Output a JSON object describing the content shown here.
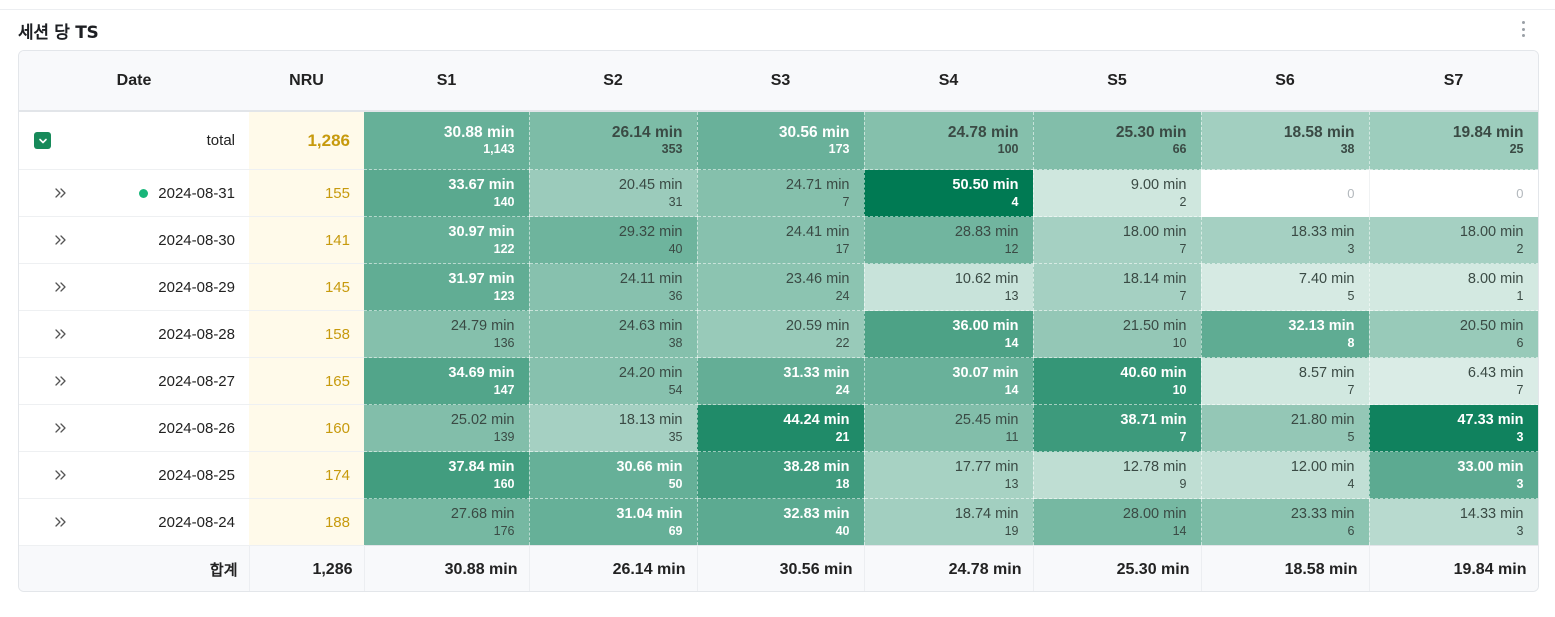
{
  "widget": {
    "title": "세션 당 TS"
  },
  "table": {
    "columns": [
      "Date",
      "NRU",
      "S1",
      "S2",
      "S3",
      "S4",
      "S5",
      "S6",
      "S7"
    ],
    "total_row": {
      "label": "total",
      "nru": "1,286",
      "cells": [
        {
          "time": "30.88 min",
          "count": "1,143",
          "level": 0.61
        },
        {
          "time": "26.14 min",
          "count": "353",
          "level": 0.52
        },
        {
          "time": "30.56 min",
          "count": "173",
          "level": 0.6
        },
        {
          "time": "24.78 min",
          "count": "100",
          "level": 0.49
        },
        {
          "time": "25.30 min",
          "count": "66",
          "level": 0.5
        },
        {
          "time": "18.58 min",
          "count": "38",
          "level": 0.37
        },
        {
          "time": "19.84 min",
          "count": "25",
          "level": 0.39
        }
      ]
    },
    "rows": [
      {
        "date": "2024-08-31",
        "active": true,
        "nru": "155",
        "cells": [
          {
            "time": "33.67 min",
            "count": "140",
            "level": 0.66
          },
          {
            "time": "20.45 min",
            "count": "31",
            "level": 0.4
          },
          {
            "time": "24.71 min",
            "count": "7",
            "level": 0.49
          },
          {
            "time": "50.50 min",
            "count": "4",
            "level": 1.0
          },
          {
            "time": "9.00 min",
            "count": "2",
            "level": 0.18
          },
          {
            "time": "",
            "count": "0",
            "level": 0
          },
          {
            "time": "",
            "count": "0",
            "level": 0
          }
        ]
      },
      {
        "date": "2024-08-30",
        "active": false,
        "nru": "141",
        "cells": [
          {
            "time": "30.97 min",
            "count": "122",
            "level": 0.61
          },
          {
            "time": "29.32 min",
            "count": "40",
            "level": 0.58
          },
          {
            "time": "24.41 min",
            "count": "17",
            "level": 0.48
          },
          {
            "time": "28.83 min",
            "count": "12",
            "level": 0.57
          },
          {
            "time": "18.00 min",
            "count": "7",
            "level": 0.36
          },
          {
            "time": "18.33 min",
            "count": "3",
            "level": 0.36
          },
          {
            "time": "18.00 min",
            "count": "2",
            "level": 0.36
          }
        ]
      },
      {
        "date": "2024-08-29",
        "active": false,
        "nru": "145",
        "cells": [
          {
            "time": "31.97 min",
            "count": "123",
            "level": 0.63
          },
          {
            "time": "24.11 min",
            "count": "36",
            "level": 0.48
          },
          {
            "time": "23.46 min",
            "count": "24",
            "level": 0.46
          },
          {
            "time": "10.62 min",
            "count": "13",
            "level": 0.21
          },
          {
            "time": "18.14 min",
            "count": "7",
            "level": 0.36
          },
          {
            "time": "7.40 min",
            "count": "5",
            "level": 0.15
          },
          {
            "time": "8.00 min",
            "count": "1",
            "level": 0.16
          }
        ]
      },
      {
        "date": "2024-08-28",
        "active": false,
        "nru": "158",
        "cells": [
          {
            "time": "24.79 min",
            "count": "136",
            "level": 0.49
          },
          {
            "time": "24.63 min",
            "count": "38",
            "level": 0.49
          },
          {
            "time": "20.59 min",
            "count": "22",
            "level": 0.41
          },
          {
            "time": "36.00 min",
            "count": "14",
            "level": 0.71
          },
          {
            "time": "21.50 min",
            "count": "10",
            "level": 0.43
          },
          {
            "time": "32.13 min",
            "count": "8",
            "level": 0.64
          },
          {
            "time": "20.50 min",
            "count": "6",
            "level": 0.41
          }
        ]
      },
      {
        "date": "2024-08-27",
        "active": false,
        "nru": "165",
        "cells": [
          {
            "time": "34.69 min",
            "count": "147",
            "level": 0.69
          },
          {
            "time": "24.20 min",
            "count": "54",
            "level": 0.48
          },
          {
            "time": "31.33 min",
            "count": "24",
            "level": 0.62
          },
          {
            "time": "30.07 min",
            "count": "14",
            "level": 0.6
          },
          {
            "time": "40.60 min",
            "count": "10",
            "level": 0.8
          },
          {
            "time": "8.57 min",
            "count": "7",
            "level": 0.17
          },
          {
            "time": "6.43 min",
            "count": "7",
            "level": 0.13
          }
        ]
      },
      {
        "date": "2024-08-26",
        "active": false,
        "nru": "160",
        "cells": [
          {
            "time": "25.02 min",
            "count": "139",
            "level": 0.5
          },
          {
            "time": "18.13 min",
            "count": "35",
            "level": 0.36
          },
          {
            "time": "44.24 min",
            "count": "21",
            "level": 0.88
          },
          {
            "time": "25.45 min",
            "count": "11",
            "level": 0.5
          },
          {
            "time": "38.71 min",
            "count": "7",
            "level": 0.77
          },
          {
            "time": "21.80 min",
            "count": "5",
            "level": 0.43
          },
          {
            "time": "47.33 min",
            "count": "3",
            "level": 0.94
          }
        ]
      },
      {
        "date": "2024-08-25",
        "active": false,
        "nru": "174",
        "cells": [
          {
            "time": "37.84 min",
            "count": "160",
            "level": 0.75
          },
          {
            "time": "30.66 min",
            "count": "50",
            "level": 0.61
          },
          {
            "time": "38.28 min",
            "count": "18",
            "level": 0.76
          },
          {
            "time": "17.77 min",
            "count": "13",
            "level": 0.35
          },
          {
            "time": "12.78 min",
            "count": "9",
            "level": 0.25
          },
          {
            "time": "12.00 min",
            "count": "4",
            "level": 0.24
          },
          {
            "time": "33.00 min",
            "count": "3",
            "level": 0.65
          }
        ]
      },
      {
        "date": "2024-08-24",
        "active": false,
        "nru": "188",
        "cells": [
          {
            "time": "27.68 min",
            "count": "176",
            "level": 0.55
          },
          {
            "time": "31.04 min",
            "count": "69",
            "level": 0.61
          },
          {
            "time": "32.83 min",
            "count": "40",
            "level": 0.65
          },
          {
            "time": "18.74 min",
            "count": "19",
            "level": 0.37
          },
          {
            "time": "28.00 min",
            "count": "14",
            "level": 0.55
          },
          {
            "time": "23.33 min",
            "count": "6",
            "level": 0.46
          },
          {
            "time": "14.33 min",
            "count": "3",
            "level": 0.28
          }
        ]
      }
    ],
    "footer": {
      "label": "합계",
      "nru": "1,286",
      "values": [
        "30.88 min",
        "26.14 min",
        "30.56 min",
        "24.78 min",
        "25.30 min",
        "18.58 min",
        "19.84 min"
      ]
    }
  },
  "colors": {
    "heat_high": "#007a53",
    "heat_low": "#f4faf7",
    "nru_text": "#c79a0d",
    "nru_bg": "#fffaea",
    "toggle": "#178a5a",
    "active_dot": "#19b67a"
  },
  "icons": {
    "toggle": "chevron-down-icon",
    "expand": "double-chevron-right-icon",
    "menu": "vertical-ellipsis-icon"
  }
}
